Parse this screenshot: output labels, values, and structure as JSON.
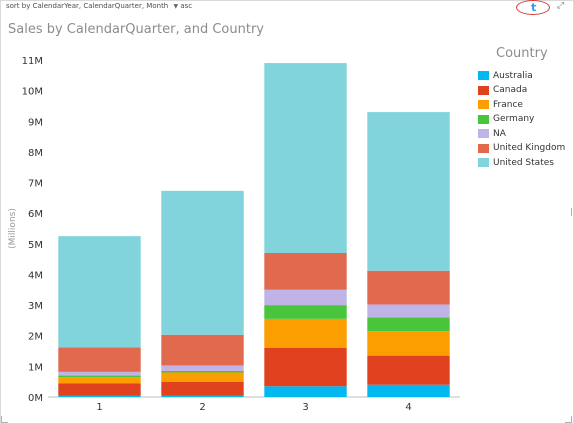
{
  "header": {
    "sort_text": "sort by  CalendarYear, CalendarQuarter, Month",
    "sort_dir": "asc",
    "share_glyph": "t"
  },
  "icons": {
    "share": "twitter-share-icon",
    "expand": "expand-icon"
  },
  "chart_data": {
    "type": "bar",
    "stacked": true,
    "title": "Sales by CalendarQuarter, and Country",
    "xlabel": "",
    "ylabel": "(Millions)",
    "categories": [
      "1",
      "2",
      "3",
      "4"
    ],
    "ylim": [
      0,
      11
    ],
    "yticks": [
      0,
      1,
      2,
      3,
      4,
      5,
      6,
      7,
      8,
      9,
      10,
      11
    ],
    "ytick_labels": [
      "0M",
      "1M",
      "2M",
      "3M",
      "4M",
      "5M",
      "6M",
      "7M",
      "8M",
      "9M",
      "10M",
      "11M"
    ],
    "grid": false,
    "legend_title": "Country",
    "legend_position": "right",
    "series": [
      {
        "name": "Australia",
        "color": "#01b8f0",
        "values": [
          0.05,
          0.05,
          0.35,
          0.4
        ]
      },
      {
        "name": "Canada",
        "color": "#e0421f",
        "values": [
          0.4,
          0.45,
          1.25,
          0.95
        ]
      },
      {
        "name": "France",
        "color": "#fc9d00",
        "values": [
          0.2,
          0.3,
          0.95,
          0.8
        ]
      },
      {
        "name": "Germany",
        "color": "#48c53b",
        "values": [
          0.05,
          0.05,
          0.45,
          0.45
        ]
      },
      {
        "name": "NA",
        "color": "#c0b4e6",
        "values": [
          0.12,
          0.18,
          0.5,
          0.42
        ]
      },
      {
        "name": "United Kingdom",
        "color": "#e1694e",
        "values": [
          0.8,
          1.0,
          1.2,
          1.1
        ]
      },
      {
        "name": "United States",
        "color": "#81d4dc",
        "values": [
          3.63,
          4.7,
          6.2,
          5.18
        ]
      }
    ]
  }
}
